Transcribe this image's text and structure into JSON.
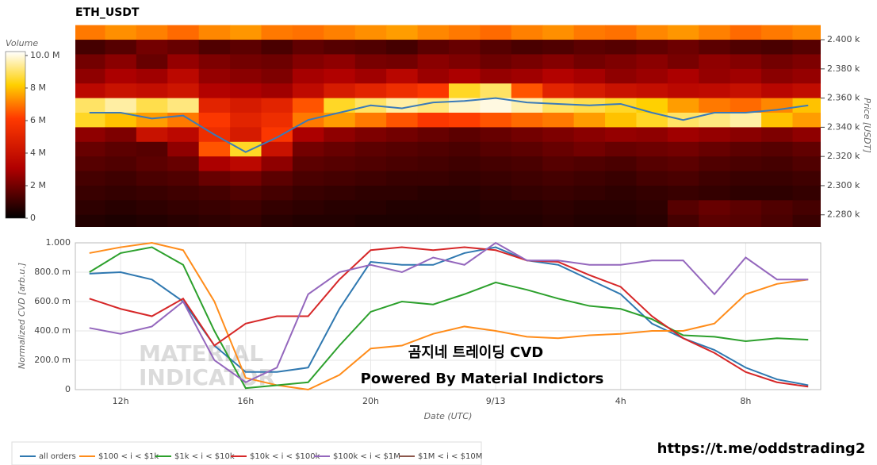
{
  "chart_data": [
    {
      "type": "heatmap",
      "title": "ETH_USDT",
      "y_label": "Price [USDT]",
      "colorbar_title": "Volume",
      "colorscale": [
        [
          0,
          "#000000"
        ],
        [
          0.3,
          "#b00000"
        ],
        [
          0.6,
          "#ff3a00"
        ],
        [
          0.8,
          "#ffd000"
        ],
        [
          1,
          "#ffffff"
        ]
      ],
      "zlim": [
        0,
        10240000.0
      ],
      "zticks": [
        0,
        {
          "value": 2000000.0,
          "label": "2 M"
        },
        {
          "value": 4000000.0,
          "label": "4 M"
        },
        {
          "value": 6000000.0,
          "label": "6 M"
        },
        {
          "value": 8000000.0,
          "label": "8 M"
        },
        {
          "value": 10000000.0,
          "label": "10.0 M"
        }
      ],
      "xlim": [
        10.55,
        34.4
      ],
      "ylim": [
        2271.7,
        2410.9
      ],
      "yticks": [
        {
          "value": 2280,
          "label": "2.280 k"
        },
        {
          "value": 2300,
          "label": "2.300 k"
        },
        {
          "value": 2320,
          "label": "2.320 k"
        },
        {
          "value": 2340,
          "label": "2.340 k"
        },
        {
          "value": 2360,
          "label": "2.360 k"
        },
        {
          "value": 2380,
          "label": "2.380 k"
        },
        {
          "value": 2400,
          "label": "2.400 k"
        }
      ],
      "x": [
        11,
        12,
        13,
        14,
        15,
        16,
        17,
        18,
        19,
        20,
        21,
        22,
        23,
        24,
        25,
        26,
        27,
        28,
        29,
        30,
        31,
        32,
        33,
        34
      ],
      "y": [
        2405,
        2395,
        2385,
        2375,
        2365,
        2355,
        2345,
        2335,
        2325,
        2315,
        2305,
        2295,
        2285,
        2275
      ],
      "z": [
        [
          7000000.0,
          7300000.0,
          7100000.0,
          6800000.0,
          7200000.0,
          7400000.0,
          7000000.0,
          6900000.0,
          7100000.0,
          7300000.0,
          7500000.0,
          7200000.0,
          7000000.0,
          6800000.0,
          7100000.0,
          7300000.0,
          7000000.0,
          6900000.0,
          7200000.0,
          7400000.0,
          7100000.0,
          6800000.0,
          7000000.0,
          7200000.0
        ],
        [
          1200000.0,
          1500000.0,
          2000000.0,
          1800000.0,
          1400000.0,
          1600000.0,
          1300000.0,
          1700000.0,
          1500000.0,
          1400000.0,
          1200000.0,
          1600000.0,
          1800000.0,
          1500000.0,
          1300000.0,
          1400000.0,
          1600000.0,
          1500000.0,
          1700000.0,
          1900000.0,
          1600000.0,
          1400000.0,
          1300000.0,
          1500000.0
        ],
        [
          2000000.0,
          2400000.0,
          1800000.0,
          2600000.0,
          2200000.0,
          2000000.0,
          1900000.0,
          2300000.0,
          2500000.0,
          2100000.0,
          2000000.0,
          2400000.0,
          2200000.0,
          1900000.0,
          2100000.0,
          2300000.0,
          2000000.0,
          2200000.0,
          2400000.0,
          2100000.0,
          2500000.0,
          2300000.0,
          2000000.0,
          2200000.0
        ],
        [
          2500000.0,
          3000000.0,
          2800000.0,
          3500000.0,
          2600000.0,
          2400000.0,
          2200000.0,
          2900000.0,
          3100000.0,
          2800000.0,
          3400000.0,
          2700000.0,
          3000000.0,
          2600000.0,
          2800000.0,
          3200000.0,
          2900000.0,
          2500000.0,
          2700000.0,
          3000000.0,
          2600000.0,
          2800000.0,
          2400000.0,
          2600000.0
        ],
        [
          3500000.0,
          4000000.0,
          3800000.0,
          4200000.0,
          3200000.0,
          3000000.0,
          2800000.0,
          3600000.0,
          4500000.0,
          5000000.0,
          5500000.0,
          6000000.0,
          8500000.0,
          9000000.0,
          6500000.0,
          5000000.0,
          4500000.0,
          4000000.0,
          3800000.0,
          3500000.0,
          3600000.0,
          3900000.0,
          3400000.0,
          3700000.0
        ],
        [
          9000000.0,
          9500000.0,
          8800000.0,
          9200000.0,
          5000000.0,
          4500000.0,
          5000000.0,
          6500000.0,
          8500000.0,
          9000000.0,
          9500000.0,
          9200000.0,
          9800000.0,
          10000000.0,
          9600000.0,
          9000000.0,
          8800000.0,
          8500000.0,
          8200000.0,
          7500000.0,
          7000000.0,
          6800000.0,
          7200000.0,
          8000000.0
        ],
        [
          8500000.0,
          8000000.0,
          7500000.0,
          7000000.0,
          6000000.0,
          5000000.0,
          5500000.0,
          7000000.0,
          7500000.0,
          7000000.0,
          6500000.0,
          6000000.0,
          6200000.0,
          6500000.0,
          6800000.0,
          7000000.0,
          7500000.0,
          8000000.0,
          8500000.0,
          9000000.0,
          9200000.0,
          9500000.0,
          8000000.0,
          7500000.0
        ],
        [
          2500000.0,
          2200000.0,
          4000000.0,
          3500000.0,
          5500000.0,
          4500000.0,
          6000000.0,
          3000000.0,
          2500000.0,
          2200000.0,
          2000000.0,
          1800000.0,
          1600000.0,
          1800000.0,
          2000000.0,
          2200000.0,
          2400000.0,
          2600000.0,
          2500000.0,
          2800000.0,
          2600000.0,
          2400000.0,
          2200000.0,
          2500000.0
        ],
        [
          1800000.0,
          1600000.0,
          1500000.0,
          2500000.0,
          6500000.0,
          8500000.0,
          4000000.0,
          2000000.0,
          1800000.0,
          1600000.0,
          1500000.0,
          1400000.0,
          1300000.0,
          1500000.0,
          1600000.0,
          1800000.0,
          2000000.0,
          1800000.0,
          1900000.0,
          2000000.0,
          1800000.0,
          1600000.0,
          1500000.0,
          1700000.0
        ],
        [
          1500000.0,
          1400000.0,
          1600000.0,
          1800000.0,
          3000000.0,
          3500000.0,
          2500000.0,
          1600000.0,
          1500000.0,
          1400000.0,
          1300000.0,
          1200000.0,
          1100000.0,
          1200000.0,
          1300000.0,
          1500000.0,
          1400000.0,
          1300000.0,
          1500000.0,
          1600000.0,
          1400000.0,
          1300000.0,
          1200000.0,
          1400000.0
        ],
        [
          1200000.0,
          1100000.0,
          1300000.0,
          1400000.0,
          1800000.0,
          2000000.0,
          1600000.0,
          1300000.0,
          1200000.0,
          1100000.0,
          1000000.0,
          1000000.0,
          900000.0,
          1000000.0,
          1100000.0,
          1200000.0,
          1100000.0,
          1000000.0,
          1200000.0,
          1300000.0,
          1100000.0,
          1000000.0,
          1000000.0,
          1100000.0
        ],
        [
          1000000.0,
          900000.0,
          1000000.0,
          1100000.0,
          1200000.0,
          1400000.0,
          1200000.0,
          1000000.0,
          900000.0,
          800000.0,
          800000.0,
          700000.0,
          700000.0,
          800000.0,
          900000.0,
          1000000.0,
          900000.0,
          800000.0,
          900000.0,
          1000000.0,
          900000.0,
          800000.0,
          800000.0,
          900000.0
        ],
        [
          800000.0,
          700000.0,
          800000.0,
          900000.0,
          1000000.0,
          1100000.0,
          900000.0,
          800000.0,
          700000.0,
          700000.0,
          600000.0,
          600000.0,
          600000.0,
          700000.0,
          700000.0,
          800000.0,
          700000.0,
          700000.0,
          800000.0,
          1500000.0,
          1800000.0,
          1600000.0,
          1400000.0,
          1200000.0
        ],
        [
          600000.0,
          500000.0,
          600000.0,
          700000.0,
          800000.0,
          900000.0,
          700000.0,
          600000.0,
          600000.0,
          500000.0,
          500000.0,
          500000.0,
          500000.0,
          600000.0,
          600000.0,
          700000.0,
          600000.0,
          600000.0,
          700000.0,
          1200000.0,
          1600000.0,
          1500000.0,
          1300000.0,
          1000000.0
        ]
      ],
      "price_line": [
        2350,
        2350,
        2346,
        2348,
        2335,
        2323,
        2333,
        2345,
        2350,
        2355,
        2353,
        2357,
        2358,
        2360,
        2357,
        2356,
        2355,
        2356,
        2350,
        2345,
        2350,
        2350,
        2352,
        2355
      ],
      "price_line_color": "#3a7ab8"
    },
    {
      "type": "line",
      "x_label": "Date (UTC)",
      "y_label": "Normalized CVD [arb.u.]",
      "annotations": [
        "곰지네 트레이딩 CVD",
        "Powered By Material Indictors"
      ],
      "watermark": [
        "MATERIAL",
        "INDICATOR"
      ],
      "link": "https://t.me/oddstrading2",
      "grid": true,
      "legend": "bottom",
      "xlim": [
        10.55,
        34.4
      ],
      "xticks": [
        {
          "value": 12,
          "label": "12h"
        },
        {
          "value": 16,
          "label": "16h"
        },
        {
          "value": 20,
          "label": "20h"
        },
        {
          "value": 24,
          "label": "9/13"
        },
        {
          "value": 28,
          "label": "4h"
        },
        {
          "value": 32,
          "label": "8h"
        }
      ],
      "ylim": [
        0,
        1
      ],
      "yticks": [
        0,
        {
          "value": 0.2,
          "label": "200.0 m"
        },
        {
          "value": 0.4,
          "label": "400.0 m"
        },
        {
          "value": 0.6,
          "label": "600.0 m"
        },
        {
          "value": 0.8,
          "label": "800.0 m"
        },
        {
          "value": 1,
          "label": "1.000"
        }
      ],
      "x": [
        11,
        12,
        13,
        14,
        15,
        16,
        17,
        18,
        19,
        20,
        21,
        22,
        23,
        24,
        25,
        26,
        27,
        28,
        29,
        30,
        31,
        32,
        33,
        34
      ],
      "series": [
        {
          "name": "all orders",
          "color": "#2f78b0",
          "values": [
            0.79,
            0.8,
            0.75,
            0.6,
            0.3,
            0.12,
            0.12,
            0.15,
            0.55,
            0.87,
            0.85,
            0.85,
            0.93,
            0.97,
            0.88,
            0.85,
            0.75,
            0.65,
            0.45,
            0.35,
            0.27,
            0.15,
            0.07,
            0.03
          ]
        },
        {
          "name": "$100 < i < $1k",
          "color": "#ff8c1a",
          "values": [
            0.93,
            0.97,
            1.0,
            0.95,
            0.6,
            0.08,
            0.03,
            0.0,
            0.1,
            0.28,
            0.3,
            0.38,
            0.43,
            0.4,
            0.36,
            0.35,
            0.37,
            0.38,
            0.4,
            0.4,
            0.45,
            0.65,
            0.72,
            0.75
          ]
        },
        {
          "name": "$1k < i < $10k",
          "color": "#2ca02c",
          "values": [
            0.8,
            0.93,
            0.97,
            0.85,
            0.4,
            0.01,
            0.03,
            0.05,
            0.3,
            0.53,
            0.6,
            0.58,
            0.65,
            0.73,
            0.68,
            0.62,
            0.57,
            0.55,
            0.48,
            0.37,
            0.36,
            0.33,
            0.35,
            0.34
          ]
        },
        {
          "name": "$10k < i < $100k",
          "color": "#d62728",
          "values": [
            0.62,
            0.55,
            0.5,
            0.62,
            0.3,
            0.45,
            0.5,
            0.5,
            0.75,
            0.95,
            0.97,
            0.95,
            0.97,
            0.95,
            0.88,
            0.87,
            0.78,
            0.7,
            0.5,
            0.35,
            0.25,
            0.12,
            0.05,
            0.02
          ]
        },
        {
          "name": "$100k < i < $1M",
          "color": "#9467bd",
          "values": [
            0.42,
            0.38,
            0.43,
            0.6,
            0.2,
            0.05,
            0.15,
            0.65,
            0.8,
            0.85,
            0.8,
            0.9,
            0.85,
            1.0,
            0.88,
            0.88,
            0.85,
            0.85,
            0.88,
            0.88,
            0.65,
            0.9,
            0.75,
            0.75
          ]
        },
        {
          "name": "$1M < i < $10M",
          "color": "#8c564b",
          "values": [
            null,
            null,
            null,
            null,
            null,
            null,
            null,
            null,
            null,
            null,
            null,
            null,
            null,
            null,
            null,
            null,
            null,
            null,
            null,
            null,
            null,
            null,
            null,
            null
          ]
        }
      ]
    }
  ]
}
